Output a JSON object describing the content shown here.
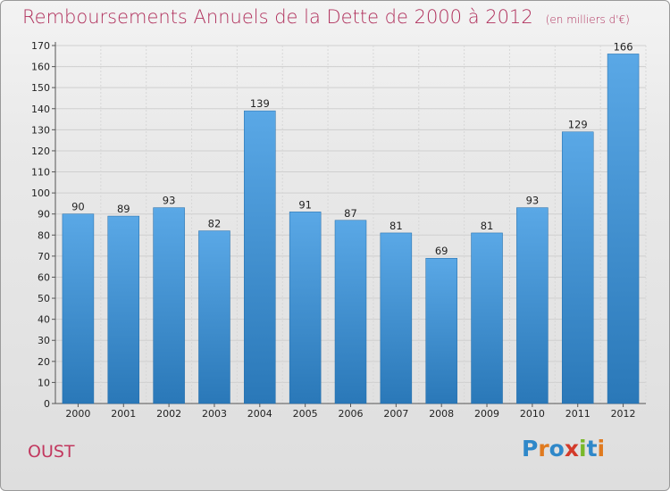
{
  "title": "Remboursements Annuels de la Dette de 2000 à 2012",
  "unit": "(en milliers d'€)",
  "commune": "OUST",
  "logo": "Proxiti",
  "colors": {
    "bar_top": "#5aa8e6",
    "bar_bottom": "#2a78b8",
    "title": "#b0305c"
  },
  "chart_data": {
    "type": "bar",
    "title": "Remboursements Annuels de la Dette de 2000 à 2012",
    "categories": [
      "2000",
      "2001",
      "2002",
      "2003",
      "2004",
      "2005",
      "2006",
      "2007",
      "2008",
      "2009",
      "2010",
      "2011",
      "2012"
    ],
    "values": [
      90,
      89,
      93,
      82,
      139,
      91,
      87,
      81,
      69,
      81,
      93,
      129,
      166
    ],
    "ylim": [
      0,
      170
    ],
    "yticks": [
      0,
      10,
      20,
      30,
      40,
      50,
      60,
      70,
      80,
      90,
      100,
      110,
      120,
      130,
      140,
      150,
      160,
      170
    ],
    "grid": true
  }
}
